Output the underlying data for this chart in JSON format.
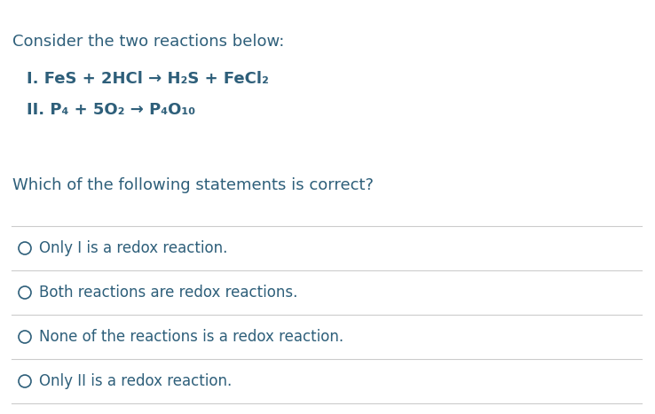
{
  "background_color": "#ffffff",
  "text_color": "#2e5f7a",
  "line_color": "#cccccc",
  "title": "Consider the two reactions below:",
  "reaction1": "I. FeS + 2HCl → H₂S + FeCl₂",
  "reaction2": "II. P₄ + 5O₂ → P₄O₁₀",
  "question": "Which of the following statements is correct?",
  "options": [
    "Only I is a redox reaction.",
    "Both reactions are redox reactions.",
    "None of the reactions is a redox reaction.",
    "Only II is a redox reaction."
  ],
  "figsize": [
    7.38,
    4.67
  ],
  "dpi": 100
}
